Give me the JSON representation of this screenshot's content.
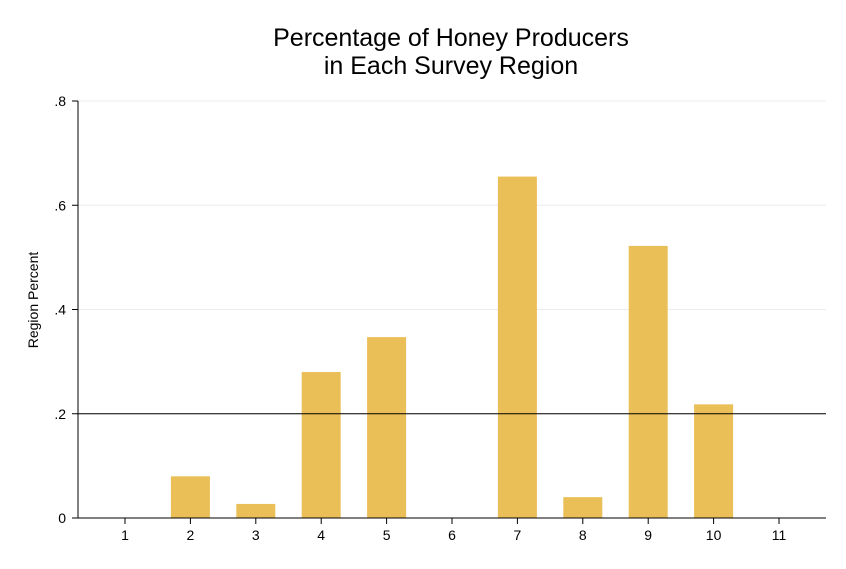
{
  "chart_data": {
    "type": "bar",
    "title_lines": [
      "Percentage of Honey Producers",
      "in Each Survey Region"
    ],
    "xlabel": "",
    "ylabel": "Region Percent",
    "categories": [
      "1",
      "2",
      "3",
      "4",
      "5",
      "6",
      "7",
      "8",
      "9",
      "10",
      "11"
    ],
    "values": [
      0,
      0.08,
      0.027,
      0.28,
      0.347,
      0,
      0.655,
      0.04,
      0.522,
      0.218,
      0
    ],
    "ylim": [
      0,
      0.8
    ],
    "yticks": [
      0,
      0.2,
      0.4,
      0.6,
      0.8
    ],
    "ytick_labels": [
      "0",
      ".2",
      ".4",
      ".6",
      ".8"
    ],
    "reference_line_y": 0.2,
    "grid": true,
    "bar_color": "#EBBF57",
    "gridline_color": "#ECECEC",
    "reference_line_color": "#000000"
  }
}
